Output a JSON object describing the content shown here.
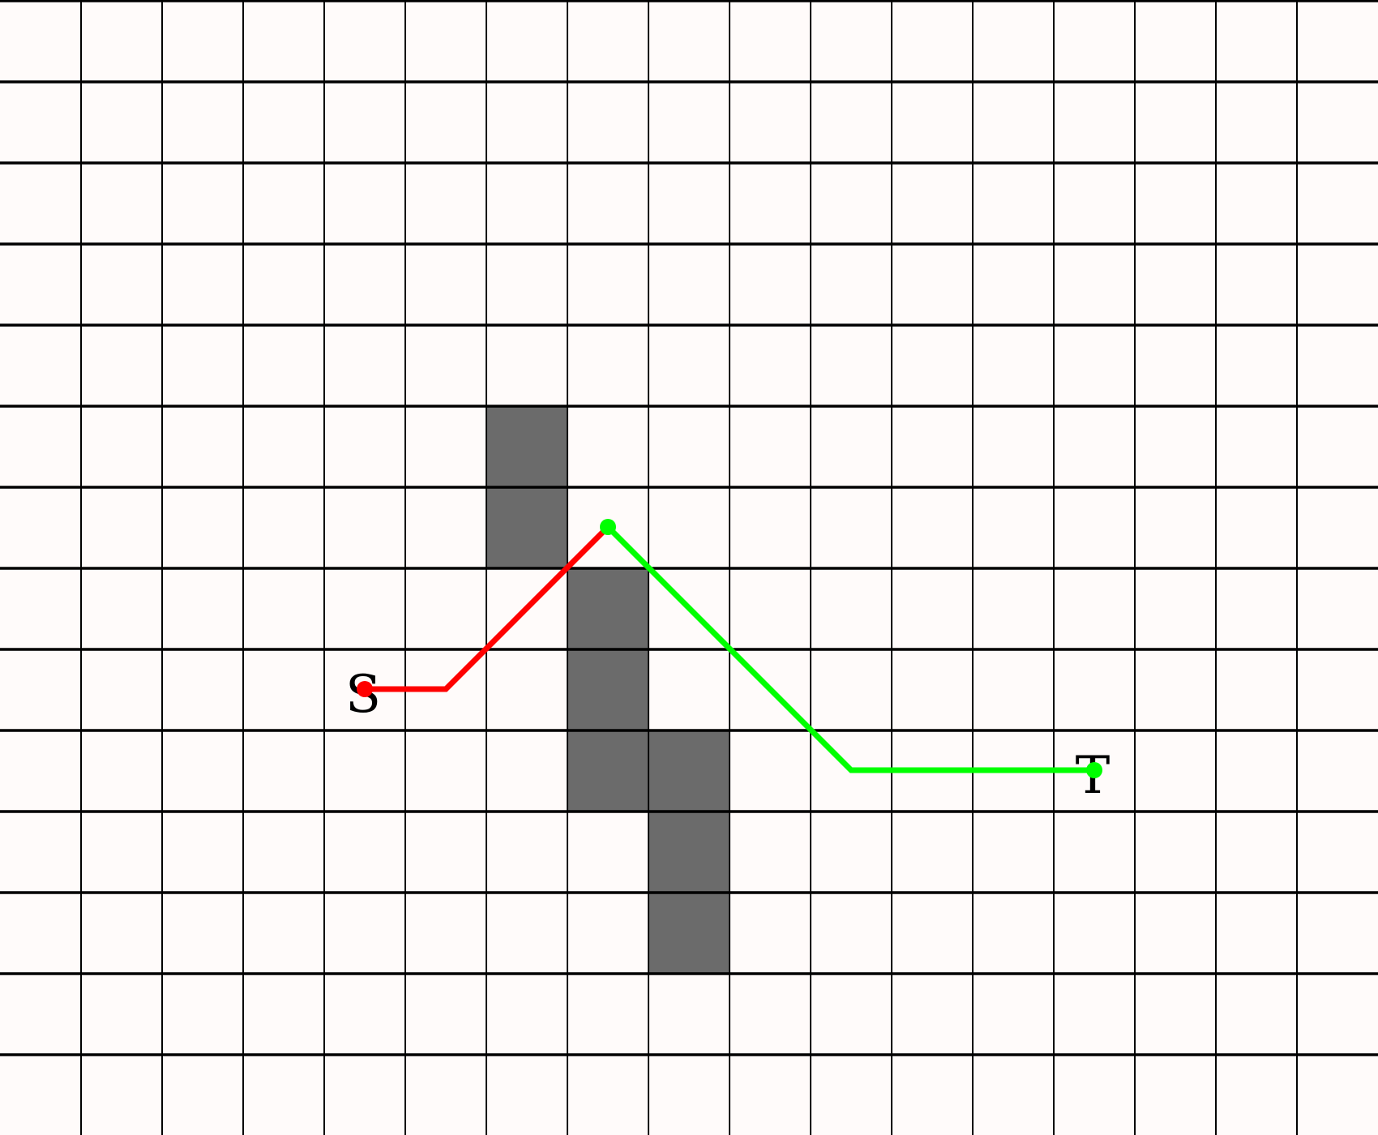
{
  "grid": {
    "columns": 17,
    "rows": 14,
    "background_color": "#fffbfa",
    "line_color": "#000000",
    "obstacle_color": "#6b6b6b"
  },
  "obstacles": [
    {
      "col": 6,
      "row": 5
    },
    {
      "col": 6,
      "row": 6
    },
    {
      "col": 7,
      "row": 7
    },
    {
      "col": 7,
      "row": 8
    },
    {
      "col": 7,
      "row": 9
    },
    {
      "col": 8,
      "row": 9
    },
    {
      "col": 8,
      "row": 10
    },
    {
      "col": 8,
      "row": 11
    }
  ],
  "labels": {
    "start": "S",
    "target": "T"
  },
  "paths": [
    {
      "id": "red-path",
      "color": "#ff0000",
      "points": [
        [
          4.5,
          8.5
        ],
        [
          5.5,
          8.5
        ],
        [
          7.5,
          6.5
        ]
      ]
    },
    {
      "id": "green-path",
      "color": "#00ff00",
      "points": [
        [
          7.5,
          6.5
        ],
        [
          10.5,
          9.5
        ],
        [
          13.5,
          9.5
        ]
      ]
    }
  ],
  "nodes": [
    {
      "id": "start-node",
      "col": 4.5,
      "row": 8.5,
      "color": "#ff0000"
    },
    {
      "id": "waypoint-node",
      "col": 7.5,
      "row": 6.5,
      "color": "#00ff00"
    },
    {
      "id": "target-node",
      "col": 13.5,
      "row": 9.5,
      "color": "#00ff00"
    }
  ]
}
